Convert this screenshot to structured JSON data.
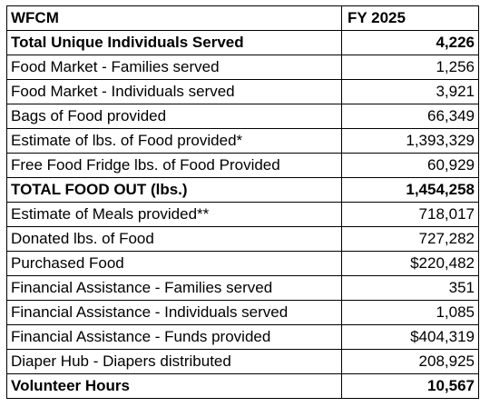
{
  "header": {
    "label": "WFCM",
    "year": "FY 2025"
  },
  "rows": [
    {
      "label": "Total Unique Individuals Served",
      "value": "4,226"
    },
    {
      "label": "Food Market - Families served",
      "value": "1,256"
    },
    {
      "label": "Food Market - Individuals served",
      "value": "3,921"
    },
    {
      "label": "Bags of Food provided",
      "value": "66,349"
    },
    {
      "label": "Estimate of lbs. of Food provided*",
      "value": "1,393,329"
    },
    {
      "label": "Free Food Fridge lbs. of Food Provided",
      "value": "60,929"
    },
    {
      "label": "TOTAL FOOD OUT (lbs.)",
      "value": "1,454,258"
    },
    {
      "label": "Estimate of Meals provided**",
      "value": "718,017"
    },
    {
      "label": "Donated lbs. of Food",
      "value": "727,282"
    },
    {
      "label": "Purchased Food",
      "value": "$220,482"
    },
    {
      "label": "Financial Assistance - Families served",
      "value": "351"
    },
    {
      "label": "Financial Assistance - Individuals served",
      "value": "1,085"
    },
    {
      "label": "Financial Assistance - Funds provided",
      "value": "$404,319"
    },
    {
      "label": "Diaper Hub - Diapers distributed",
      "value": "208,925"
    },
    {
      "label": "Volunteer Hours",
      "value": "10,567"
    }
  ]
}
